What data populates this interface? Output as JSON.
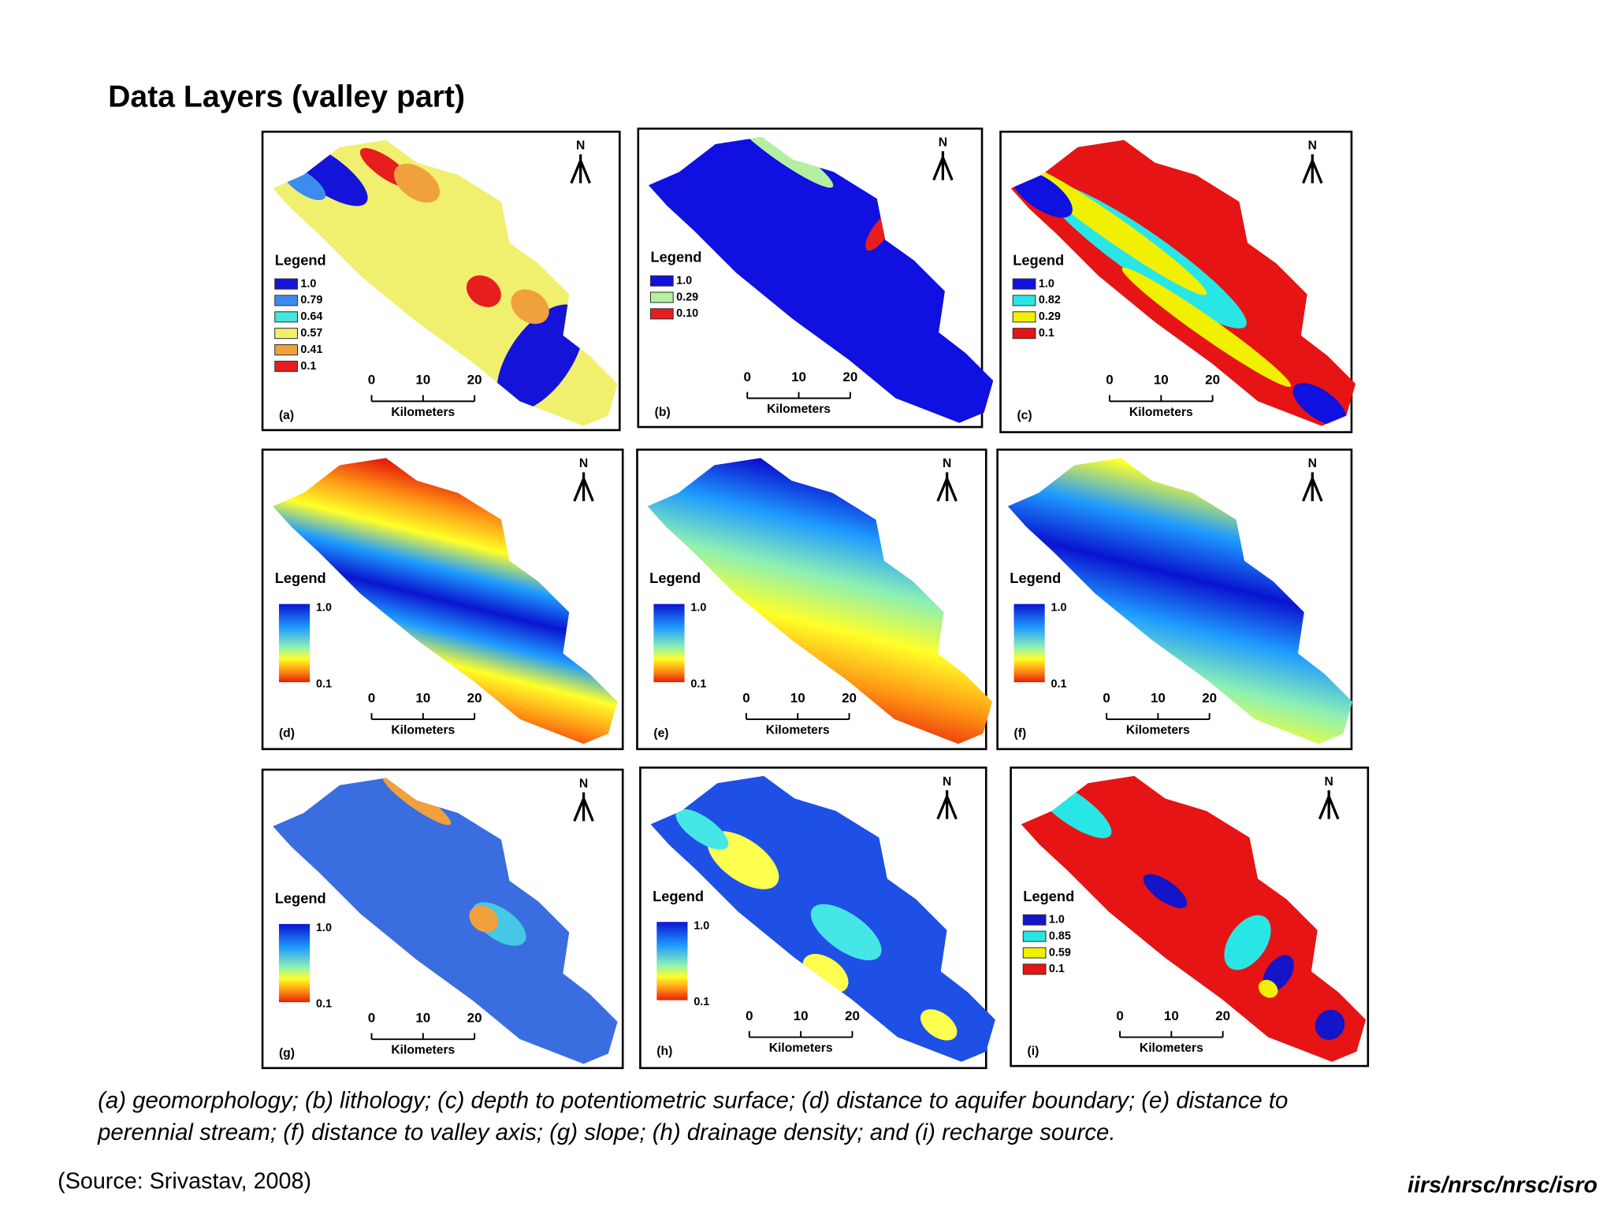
{
  "title": "Data Layers (valley part)",
  "panels": [
    {
      "label": "(a)",
      "north": "N",
      "legend_title": "Legend",
      "legend": [
        {
          "label": "1.0",
          "color": "#1414d8"
        },
        {
          "label": "0.79",
          "color": "#3c8cf0"
        },
        {
          "label": "0.64",
          "color": "#46e6dc"
        },
        {
          "label": "0.57",
          "color": "#f0f06e"
        },
        {
          "label": "0.41",
          "color": "#f0a03c"
        },
        {
          "label": "0.1",
          "color": "#e61e1e"
        }
      ],
      "scale": [
        "0",
        "10",
        "20"
      ],
      "scale_unit": "Kilometers"
    },
    {
      "label": "(b)",
      "north": "N",
      "legend_title": "Legend",
      "legend": [
        {
          "label": "1.0",
          "color": "#1010e0"
        },
        {
          "label": "0.29",
          "color": "#b4f0a0"
        },
        {
          "label": "0.10",
          "color": "#e61e1e"
        }
      ],
      "scale": [
        "0",
        "10",
        "20"
      ],
      "scale_unit": "Kilometers"
    },
    {
      "label": "(c)",
      "north": "N",
      "legend_title": "Legend",
      "legend": [
        {
          "label": "1.0",
          "color": "#1010e0"
        },
        {
          "label": "0.82",
          "color": "#28e6e6"
        },
        {
          "label": "0.29",
          "color": "#f0f000"
        },
        {
          "label": "0.1",
          "color": "#e61414"
        }
      ],
      "scale": [
        "0",
        "10",
        "20"
      ],
      "scale_unit": "Kilometers"
    },
    {
      "label": "(d)",
      "north": "N",
      "legend_title": "Legend",
      "gradient": {
        "top": "1.0",
        "bottom": "0.1"
      },
      "scale": [
        "0",
        "10",
        "20"
      ],
      "scale_unit": "Kilometers"
    },
    {
      "label": "(e)",
      "north": "N",
      "legend_title": "Legend",
      "gradient": {
        "top": "1.0",
        "bottom": "0.1"
      },
      "scale": [
        "0",
        "10",
        "20"
      ],
      "scale_unit": "Kilometers"
    },
    {
      "label": "(f)",
      "north": "N",
      "legend_title": "Legend",
      "gradient": {
        "top": "1.0",
        "bottom": "0.1"
      },
      "scale": [
        "0",
        "10",
        "20"
      ],
      "scale_unit": "Kilometers"
    },
    {
      "label": "(g)",
      "north": "N",
      "legend_title": "Legend",
      "gradient": {
        "top": "1.0",
        "bottom": "0.1"
      },
      "scale": [
        "0",
        "10",
        "20"
      ],
      "scale_unit": "Kilometers"
    },
    {
      "label": "(h)",
      "north": "N",
      "legend_title": "Legend",
      "gradient": {
        "top": "1.0",
        "bottom": "0.1"
      },
      "scale": [
        "0",
        "10",
        "20"
      ],
      "scale_unit": "Kilometers"
    },
    {
      "label": "(i)",
      "north": "N",
      "legend_title": "Legend",
      "legend": [
        {
          "label": "1.0",
          "color": "#1414c8"
        },
        {
          "label": "0.85",
          "color": "#28e6e6"
        },
        {
          "label": "0.59",
          "color": "#f0f000"
        },
        {
          "label": "0.1",
          "color": "#e61414"
        }
      ],
      "scale": [
        "0",
        "10",
        "20"
      ],
      "scale_unit": "Kilometers"
    }
  ],
  "caption": [
    "(a) geomorphology; (b) lithology; (c) depth to potentiometric surface; (d) distance to aquifer boundary; (e) distance to",
    "perennial stream; (f) distance to valley axis; (g) slope; (h) drainage density; and (i) recharge source."
  ],
  "source": "(Source: Srivastav, 2008)",
  "footer": "iirs/nrsc/nrsc/isro"
}
